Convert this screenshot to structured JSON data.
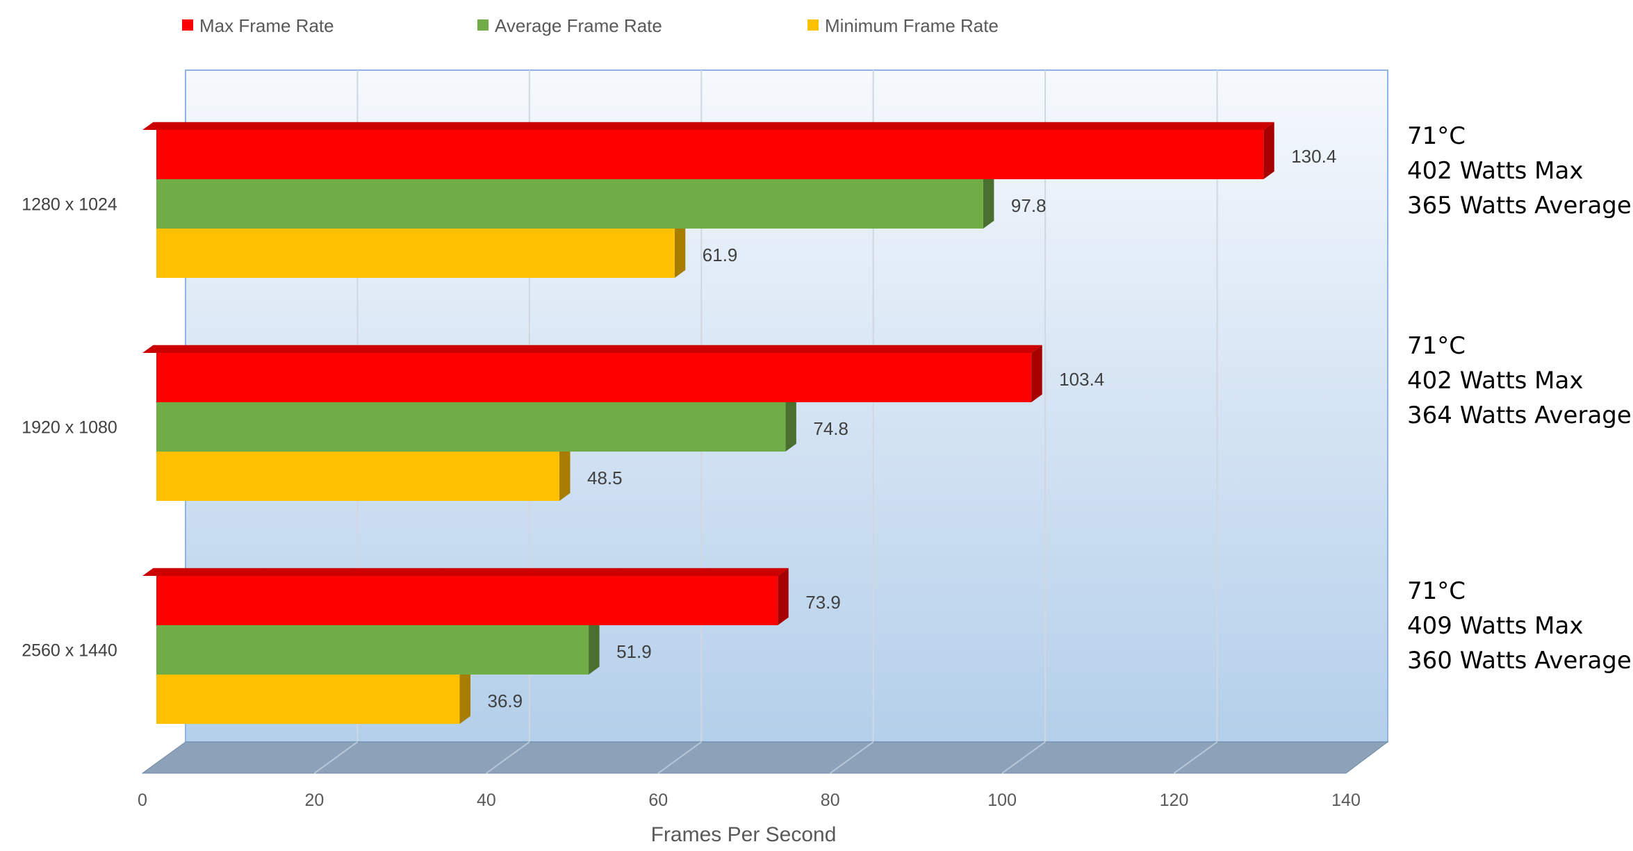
{
  "chart_data": {
    "type": "bar",
    "orientation": "horizontal",
    "style": "3d",
    "categories": [
      "1280 x 1024",
      "1920 x 1080",
      "2560 x 1440"
    ],
    "series": [
      {
        "name": "Max Frame Rate",
        "color": "#FF0000",
        "values": [
          130.4,
          103.4,
          73.9
        ]
      },
      {
        "name": "Average Frame Rate",
        "color": "#70AD47",
        "values": [
          97.8,
          74.8,
          51.9
        ]
      },
      {
        "name": "Minimum Frame Rate",
        "color": "#FFC000",
        "values": [
          61.9,
          48.5,
          36.9
        ]
      }
    ],
    "xlabel": "Frames Per Second",
    "xlim": [
      0,
      140
    ],
    "xticks": [
      "0",
      "20",
      "40",
      "60",
      "80",
      "100",
      "120",
      "140"
    ],
    "grid": true,
    "legend_position": "top",
    "annotations": [
      [
        "71°C",
        "402 Watts Max",
        "365 Watts Average"
      ],
      [
        "71°C",
        "402 Watts Max",
        "364 Watts Average"
      ],
      [
        "71°C",
        "409 Watts Max",
        "360 Watts Average"
      ]
    ]
  }
}
